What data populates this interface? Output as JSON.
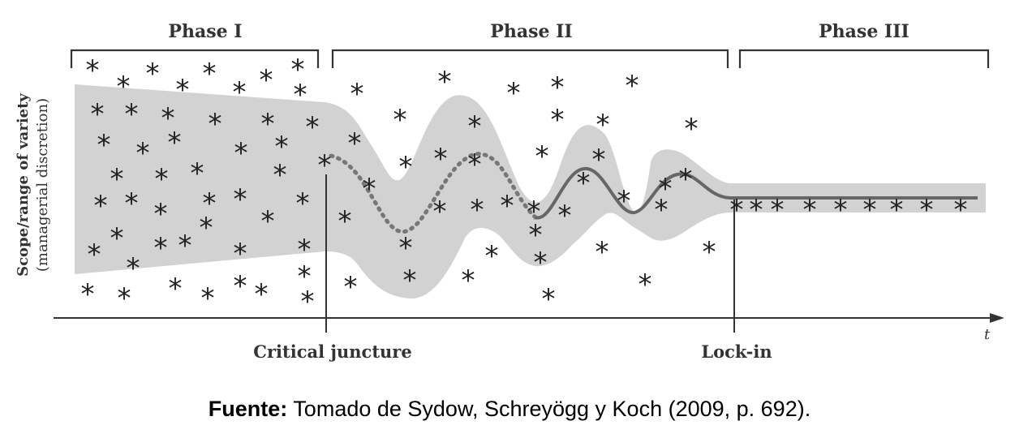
{
  "diagram": {
    "phases": [
      "Phase I",
      "Phase II",
      "Phase III"
    ],
    "y_axis_label_line1": "Scope/range of variety",
    "y_axis_label_line2": "(managerial discretion)",
    "x_axis_var": "t",
    "milestones": [
      "Critical juncture",
      "Lock-in"
    ],
    "star_glyph": "*",
    "colors": {
      "band": "#d2d2d2",
      "ink": "#333333",
      "path": "#666666"
    }
  },
  "caption": {
    "label": "Fuente:",
    "text": " Tomado de Sydow, Schreyögg y Koch (2009, p. 692)."
  }
}
